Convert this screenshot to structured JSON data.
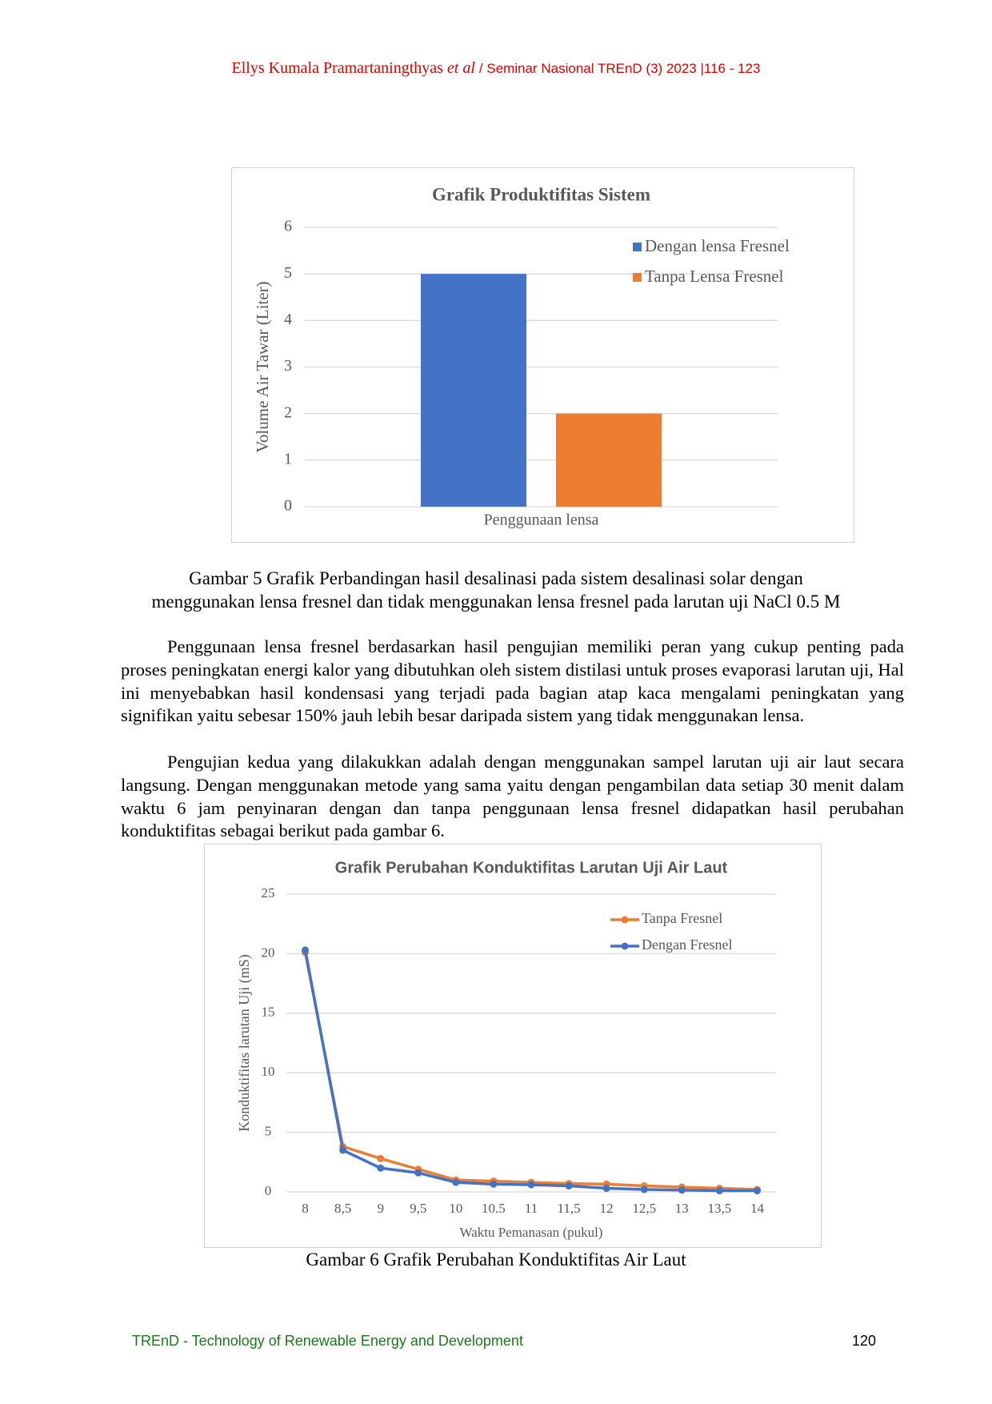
{
  "header": {
    "author": "Ellys Kumala Pramartaningthyas",
    "etal": "et al",
    "venue": "/ Seminar Nasional TREnD (3) 2023 |116 - 123"
  },
  "chart_data": [
    {
      "type": "bar",
      "title": "Grafik Produktifitas Sistem",
      "y_label": "Volume Air Tawar (Liter)",
      "categories": [
        "Penggunaan lensa"
      ],
      "series": [
        {
          "name": "Dengan lensa Fresnel",
          "color": "#4472c4",
          "values": [
            5
          ]
        },
        {
          "name": "Tanpa Lensa Fresnel",
          "color": "#ed7d31",
          "values": [
            2
          ]
        }
      ],
      "ylim": [
        0,
        6
      ],
      "yticks": [
        0,
        1,
        2,
        3,
        4,
        5,
        6
      ],
      "grid": true,
      "legend": "top-right"
    },
    {
      "type": "line",
      "title": "Grafik Perubahan Konduktifitas Larutan Uji Air Laut",
      "y_label": "Konduktifitas larutan Uji (mS)",
      "x_label": "Waktu Pemanasan (pukul)",
      "categories": [
        "8",
        "8,5",
        "9",
        "9,5",
        "10",
        "10.5",
        "11",
        "11,5",
        "12",
        "12,5",
        "13",
        "13,5",
        "14"
      ],
      "series": [
        {
          "name": "Tanpa Fresnel",
          "color": "#ed7d31",
          "values": [
            20.1,
            3.8,
            2.8,
            1.9,
            1.0,
            0.9,
            0.8,
            0.7,
            0.65,
            0.5,
            0.4,
            0.3,
            0.2
          ]
        },
        {
          "name": "Dengan Fresnel",
          "color": "#4472c4",
          "values": [
            20.3,
            3.5,
            2.0,
            1.6,
            0.8,
            0.65,
            0.6,
            0.5,
            0.3,
            0.2,
            0.15,
            0.1,
            0.1
          ]
        }
      ],
      "ylim": [
        0,
        25
      ],
      "yticks": [
        0,
        5,
        10,
        15,
        20,
        25
      ],
      "grid": true,
      "legend": "top-right"
    }
  ],
  "captions": [
    [
      "Gambar 5 Grafik Perbandingan hasil desalinasi pada sistem desalinasi solar dengan",
      "menggunakan lensa fresnel dan tidak  menggunakan lensa fresnel pada larutan uji NaCl 0.5 M"
    ],
    [
      "Gambar 6 Grafik Perubahan Konduktifitas Air Laut"
    ]
  ],
  "paragraphs": [
    "Penggunaan lensa fresnel berdasarkan hasil pengujian memiliki peran yang cukup penting pada proses peningkatan energi kalor yang dibutuhkan oleh sistem distilasi untuk proses evaporasi larutan uji, Hal ini menyebabkan hasil kondensasi yang terjadi pada bagian atap kaca mengalami peningkatan yang signifikan yaitu sebesar 150% jauh lebih besar daripada sistem yang tidak menggunakan lensa.",
    "Pengujian kedua yang dilakukkan adalah dengan menggunakan sampel larutan uji air laut secara langsung. Dengan menggunakan metode yang sama yaitu dengan pengambilan data setiap 30 menit dalam waktu 6 jam penyinaran dengan dan tanpa penggunaan lensa fresnel didapatkan hasil perubahan konduktifitas sebagai berikut pada gambar 6."
  ],
  "footer": {
    "journal": "TREnD - Technology of Renewable Energy and Development",
    "page": "120"
  }
}
